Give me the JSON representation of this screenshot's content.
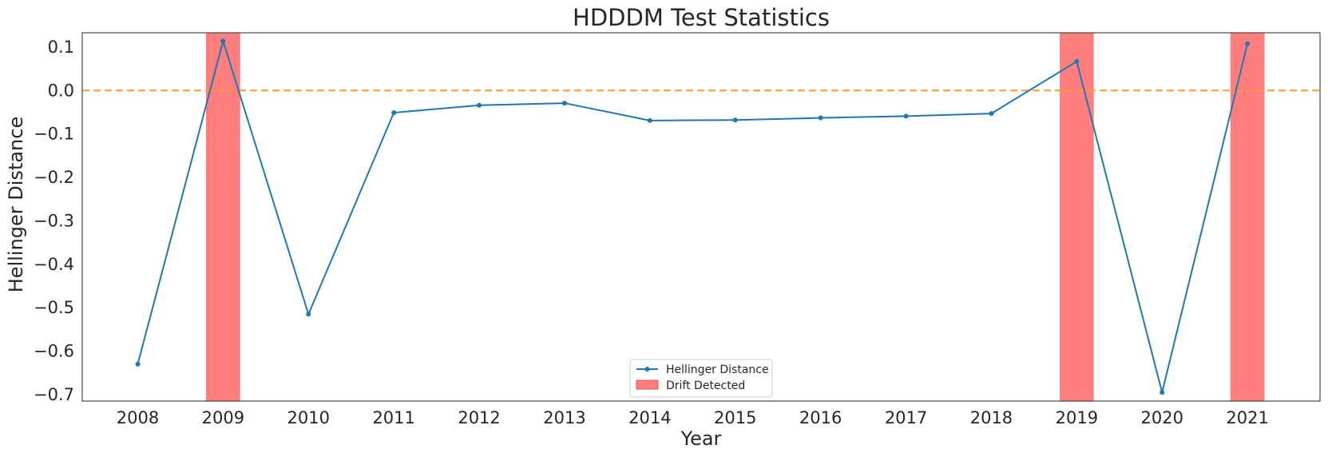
{
  "chart_data": {
    "type": "line",
    "title": "HDDDM Test Statistics",
    "xlabel": "Year",
    "ylabel": "Hellinger Distance",
    "x": [
      2008,
      2009,
      2010,
      2011,
      2012,
      2013,
      2014,
      2015,
      2016,
      2017,
      2018,
      2019,
      2020,
      2021
    ],
    "xlim": [
      2007.35,
      2021.85
    ],
    "ylim": [
      -0.715,
      0.133
    ],
    "yticks": [
      0.1,
      0.0,
      -0.1,
      -0.2,
      -0.3,
      -0.4,
      -0.5,
      -0.6,
      -0.7
    ],
    "ytick_labels": [
      "0.1",
      "0.0",
      "−0.1",
      "−0.2",
      "−0.3",
      "−0.4",
      "−0.5",
      "−0.6",
      "−0.7"
    ],
    "series": [
      {
        "name": "Hellinger Distance",
        "color": "#1f77b4",
        "values": [
          -0.63,
          0.114,
          -0.515,
          -0.051,
          -0.034,
          -0.029,
          -0.069,
          -0.068,
          -0.063,
          -0.059,
          -0.053,
          0.067,
          -0.695,
          0.108
        ]
      }
    ],
    "reference_line": {
      "y": 0.0,
      "color": "#ff9f1c",
      "style": "dashed"
    },
    "drift_regions": {
      "name": "Drift Detected",
      "color": "#ff0000",
      "opacity": 0.5,
      "spans": [
        [
          2008.8,
          2009.2
        ],
        [
          2018.8,
          2019.2
        ],
        [
          2020.8,
          2021.2
        ]
      ]
    },
    "legend": {
      "placement": "lower-center",
      "entries": [
        "Hellinger Distance",
        "Drift Detected"
      ]
    },
    "grid": false
  }
}
